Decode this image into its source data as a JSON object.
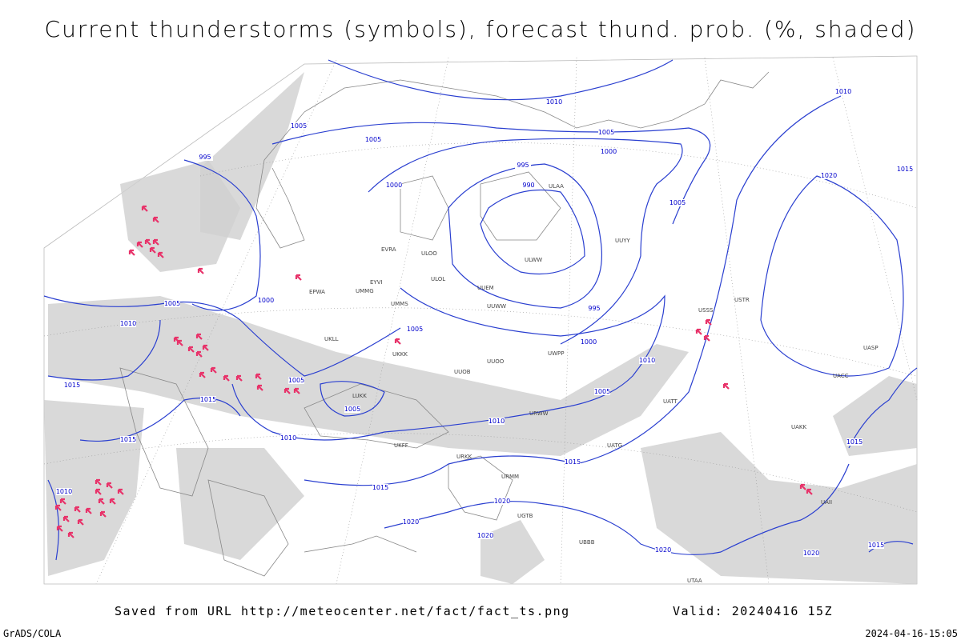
{
  "header": {
    "title": "Current thunderstorms (symbols), forecast thund. prob. (%, shaded)"
  },
  "footer": {
    "source": "Saved from URL http://meteocenter.net/fact/fact_ts.png",
    "valid": "Valid: 20240416 15Z",
    "software": "GrADS/COLA",
    "timestamp": "2024-04-16-15:05"
  },
  "isobar_labels": [
    1010,
    1010,
    1005,
    1005,
    1005,
    1000,
    995,
    995,
    990,
    1000,
    1005,
    1020,
    1015,
    1000,
    1005,
    1010,
    995,
    1005,
    1000,
    1010,
    1005,
    1015,
    1015,
    1005,
    1005,
    1010,
    1010,
    1015,
    1015,
    1015,
    1015,
    1020,
    1020,
    1020,
    1020,
    1020,
    1015,
    1010
  ],
  "stations": [
    "ULOO",
    "ULOL",
    "ULWW",
    "ULAA",
    "UUEM",
    "UUWW",
    "UKKK",
    "UUOO",
    "UUOB",
    "UWPP",
    "URWW",
    "URKK",
    "URMM",
    "UATG",
    "UATT",
    "UAKK",
    "UACC",
    "UASP",
    "USSS",
    "USTR",
    "UUYY",
    "EVRA",
    "UMMS",
    "UMMG",
    "EYVI",
    "EPWA",
    "UKLL",
    "LUKK",
    "UKFF",
    "UGTB",
    "UBBB",
    "UTAA",
    "UAII"
  ]
}
